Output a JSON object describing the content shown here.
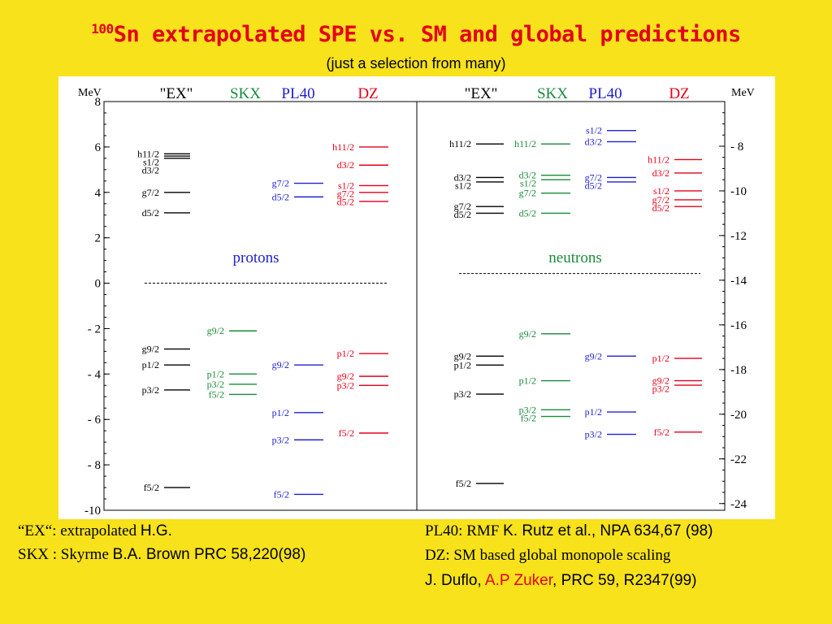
{
  "title": {
    "sup": "100",
    "main": "Sn extrapolated SPE vs. SM and global predictions"
  },
  "subtitle": "(just a selection from many)",
  "notes": {
    "ex_prefix": "“EX“: extrapolated ",
    "ex_author": "H.G.",
    "skx_prefix": "SKX : Skyrme ",
    "skx_ref": "B.A. Brown PRC 58,220(98)",
    "pl40_prefix": "PL40: RMF ",
    "pl40_ref": "K. Rutz et al., NPA 634,67 (98)",
    "dz_line": "DZ:  SM based global monopole scaling",
    "dz_ref_a": "J. Duflo, ",
    "dz_ref_b": "A.P Zuker",
    "dz_ref_c": ", PRC 59, R2347(99)"
  },
  "chart_data": {
    "type": "level-scheme",
    "colors": {
      "EX": "#000000",
      "SKX": "#1a8a3a",
      "PL40": "#2020d0",
      "DZ": "#e3001b"
    },
    "columns": [
      "\"EX\"",
      "SKX",
      "PL40",
      "DZ"
    ],
    "left_axis": {
      "label": "MeV",
      "min": -10,
      "max": 8,
      "ticks": [
        8,
        6,
        4,
        2,
        0,
        -2,
        -4,
        -6,
        -8,
        -10
      ],
      "tick_labels": [
        "8",
        "6",
        "4",
        "2",
        "0",
        "-  2",
        "-  4",
        "-  6",
        "-  8",
        "-10"
      ]
    },
    "right_axis": {
      "label": "MeV",
      "min": -24.3,
      "max": -6.0,
      "ticks": [
        -8,
        -10,
        -12,
        -14,
        -16,
        -18,
        -20,
        -22,
        -24
      ],
      "tick_labels": [
        "-  8",
        "-10",
        "-12",
        "-14",
        "-16",
        "-18",
        "-20",
        "-22",
        "-24"
      ]
    },
    "fermi_line": {
      "left": 0,
      "right": -13.7
    },
    "panels": [
      {
        "name": "protons",
        "axis": "left",
        "columns": {
          "EX": [
            {
              "label": "h11/2",
              "value": 5.7
            },
            {
              "label": "s1/2",
              "value": 5.6
            },
            {
              "label": "d3/2",
              "value": 5.5
            },
            {
              "label": "g7/2",
              "value": 4.0
            },
            {
              "label": "d5/2",
              "value": 3.1
            },
            {
              "label": "g9/2",
              "value": -2.9
            },
            {
              "label": "p1/2",
              "value": -3.6
            },
            {
              "label": "p3/2",
              "value": -4.7
            },
            {
              "label": "f5/2",
              "value": -9.0
            }
          ],
          "SKX": [
            {
              "label": "g9/2",
              "value": -2.1
            },
            {
              "label": "p1/2",
              "value": -4.0
            },
            {
              "label": "p3/2",
              "value": -4.45
            },
            {
              "label": "f5/2",
              "value": -4.9
            }
          ],
          "PL40": [
            {
              "label": "g7/2",
              "value": 4.4
            },
            {
              "label": "d5/2",
              "value": 3.8
            },
            {
              "label": "g9/2",
              "value": -3.6
            },
            {
              "label": "p1/2",
              "value": -5.7
            },
            {
              "label": "p3/2",
              "value": -6.9
            },
            {
              "label": "f5/2",
              "value": -9.3
            }
          ],
          "DZ": [
            {
              "label": "h11/2",
              "value": 6.0
            },
            {
              "label": "d3/2",
              "value": 5.2
            },
            {
              "label": "s1/2",
              "value": 4.3
            },
            {
              "label": "g7/2",
              "value": 4.0
            },
            {
              "label": "d5/2",
              "value": 3.6
            },
            {
              "label": "p1/2",
              "value": -3.1
            },
            {
              "label": "g9/2",
              "value": -4.1
            },
            {
              "label": "p3/2",
              "value": -4.5
            },
            {
              "label": "f5/2",
              "value": -6.6
            }
          ]
        }
      },
      {
        "name": "neutrons",
        "axis": "right",
        "columns": {
          "EX": [
            {
              "label": "h11/2",
              "value": -7.9
            },
            {
              "label": "d3/2",
              "value": -9.4
            },
            {
              "label": "s1/2",
              "value": -9.6
            },
            {
              "label": "g7/2",
              "value": -10.7
            },
            {
              "label": "d5/2",
              "value": -11.0
            },
            {
              "label": "g9/2",
              "value": -17.4
            },
            {
              "label": "p1/2",
              "value": -17.8
            },
            {
              "label": "p3/2",
              "value": -19.1
            },
            {
              "label": "f5/2",
              "value": -23.1
            }
          ],
          "SKX": [
            {
              "label": "h11/2",
              "value": -7.9
            },
            {
              "label": "d3/2",
              "value": -9.3
            },
            {
              "label": "s1/2",
              "value": -9.5
            },
            {
              "label": "g7/2",
              "value": -10.1
            },
            {
              "label": "d5/2",
              "value": -11.0
            },
            {
              "label": "g9/2",
              "value": -16.4
            },
            {
              "label": "p1/2",
              "value": -18.5
            },
            {
              "label": "p3/2",
              "value": -19.8
            },
            {
              "label": "f5/2",
              "value": -20.1
            }
          ],
          "PL40": [
            {
              "label": "s1/2",
              "value": -7.3
            },
            {
              "label": "d3/2",
              "value": -7.8
            },
            {
              "label": "g7/2",
              "value": -9.4
            },
            {
              "label": "d5/2",
              "value": -9.6
            },
            {
              "label": "g9/2",
              "value": -17.4
            },
            {
              "label": "p1/2",
              "value": -19.9
            },
            {
              "label": "p3/2",
              "value": -20.9
            }
          ],
          "DZ": [
            {
              "label": "h11/2",
              "value": -8.6
            },
            {
              "label": "d3/2",
              "value": -9.2
            },
            {
              "label": "s1/2",
              "value": -10.0
            },
            {
              "label": "g7/2",
              "value": -10.4
            },
            {
              "label": "d5/2",
              "value": -10.7
            },
            {
              "label": "p1/2",
              "value": -17.5
            },
            {
              "label": "g9/2",
              "value": -18.5
            },
            {
              "label": "p3/2",
              "value": -18.7
            },
            {
              "label": "f5/2",
              "value": -20.8
            }
          ]
        }
      }
    ]
  }
}
